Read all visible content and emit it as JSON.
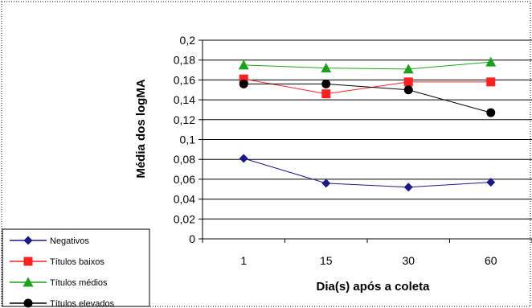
{
  "chart_data": {
    "type": "line",
    "title": "",
    "xlabel": "Dia(s) após a coleta",
    "ylabel": "Média dos logMA",
    "categories": [
      "1",
      "15",
      "30",
      "60"
    ],
    "ylim": [
      0,
      0.2
    ],
    "ystep": 0.02,
    "yticks": [
      "0",
      "0,02",
      "0,04",
      "0,06",
      "0,08",
      "0,1",
      "0,12",
      "0,14",
      "0,16",
      "0,18",
      "0,2"
    ],
    "grid": true,
    "legend_position": "bottom-left",
    "series": [
      {
        "name": "Negativos",
        "values": [
          0.081,
          0.056,
          0.052,
          0.057
        ],
        "color": "#1a1a8c",
        "marker": "diamond",
        "line_width": 1
      },
      {
        "name": "Títulos baixos",
        "values": [
          0.161,
          0.146,
          0.158,
          0.158
        ],
        "color": "#ff2020",
        "marker": "square",
        "line_width": 1
      },
      {
        "name": "Títulos médios",
        "values": [
          0.175,
          0.172,
          0.171,
          0.178
        ],
        "color": "#1aa31a",
        "marker": "triangle",
        "line_width": 1
      },
      {
        "name": "Títulos elevados",
        "values": [
          0.156,
          0.156,
          0.15,
          0.127
        ],
        "color": "#000000",
        "marker": "circle",
        "line_width": 1
      }
    ]
  }
}
